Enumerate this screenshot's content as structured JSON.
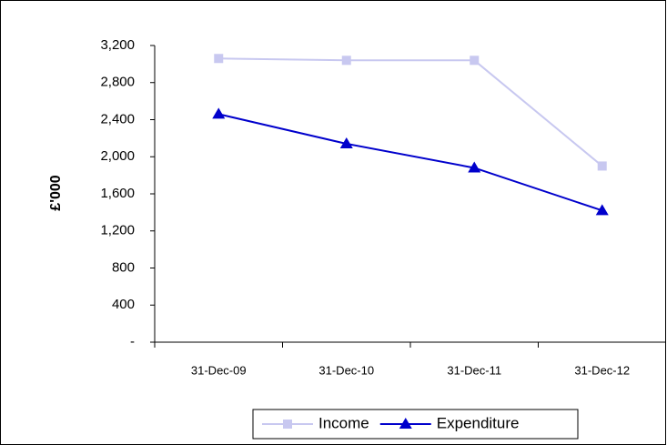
{
  "chart_data": {
    "type": "line",
    "ylabel": "£'000",
    "categories": [
      "31-Dec-09",
      "31-Dec-10",
      "31-Dec-11",
      "31-Dec-12"
    ],
    "series": [
      {
        "name": "Income",
        "color": "#c8c8f0",
        "marker": "square",
        "values": [
          3060,
          3040,
          3040,
          1900
        ]
      },
      {
        "name": "Expenditure",
        "color": "#0000cc",
        "marker": "triangle",
        "values": [
          2460,
          2140,
          1880,
          1420
        ]
      }
    ],
    "ylim": [
      0,
      3200
    ],
    "yticks": [
      {
        "value": 0,
        "label": "-"
      },
      {
        "value": 400,
        "label": "400"
      },
      {
        "value": 800,
        "label": "800"
      },
      {
        "value": 1200,
        "label": "1,200"
      },
      {
        "value": 1600,
        "label": "1,600"
      },
      {
        "value": 2000,
        "label": "2,000"
      },
      {
        "value": 2400,
        "label": "2,400"
      },
      {
        "value": 2800,
        "label": "2,800"
      },
      {
        "value": 3200,
        "label": "3,200"
      }
    ],
    "legend": "bottom"
  }
}
